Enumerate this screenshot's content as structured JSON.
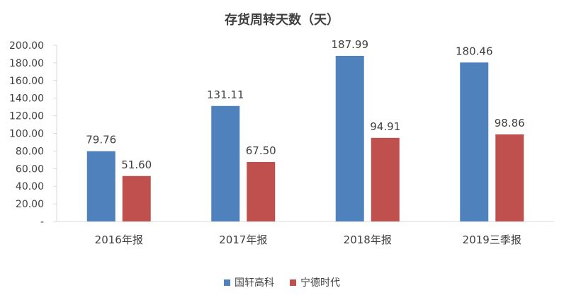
{
  "chart_data": {
    "type": "bar",
    "title": "存货周转天数（天）",
    "categories": [
      "2016年报",
      "2017年报",
      "2018年报",
      "2019三季报"
    ],
    "series": [
      {
        "name": "国轩高科",
        "color": "#4F81BD",
        "values": [
          79.76,
          131.11,
          187.99,
          180.46
        ],
        "labels": [
          "79.76",
          "131.11",
          "187.99",
          "180.46"
        ]
      },
      {
        "name": "宁德时代",
        "color": "#C0504D",
        "values": [
          51.6,
          67.5,
          94.91,
          98.86
        ],
        "labels": [
          "51.60",
          "67.50",
          "94.91",
          "98.86"
        ]
      }
    ],
    "ylim": [
      0,
      200
    ],
    "yticks": [
      "-",
      "20.00",
      "40.00",
      "60.00",
      "80.00",
      "100.00",
      "120.00",
      "140.00",
      "160.00",
      "180.00",
      "200.00"
    ],
    "grid": false,
    "legend": "bottom"
  }
}
